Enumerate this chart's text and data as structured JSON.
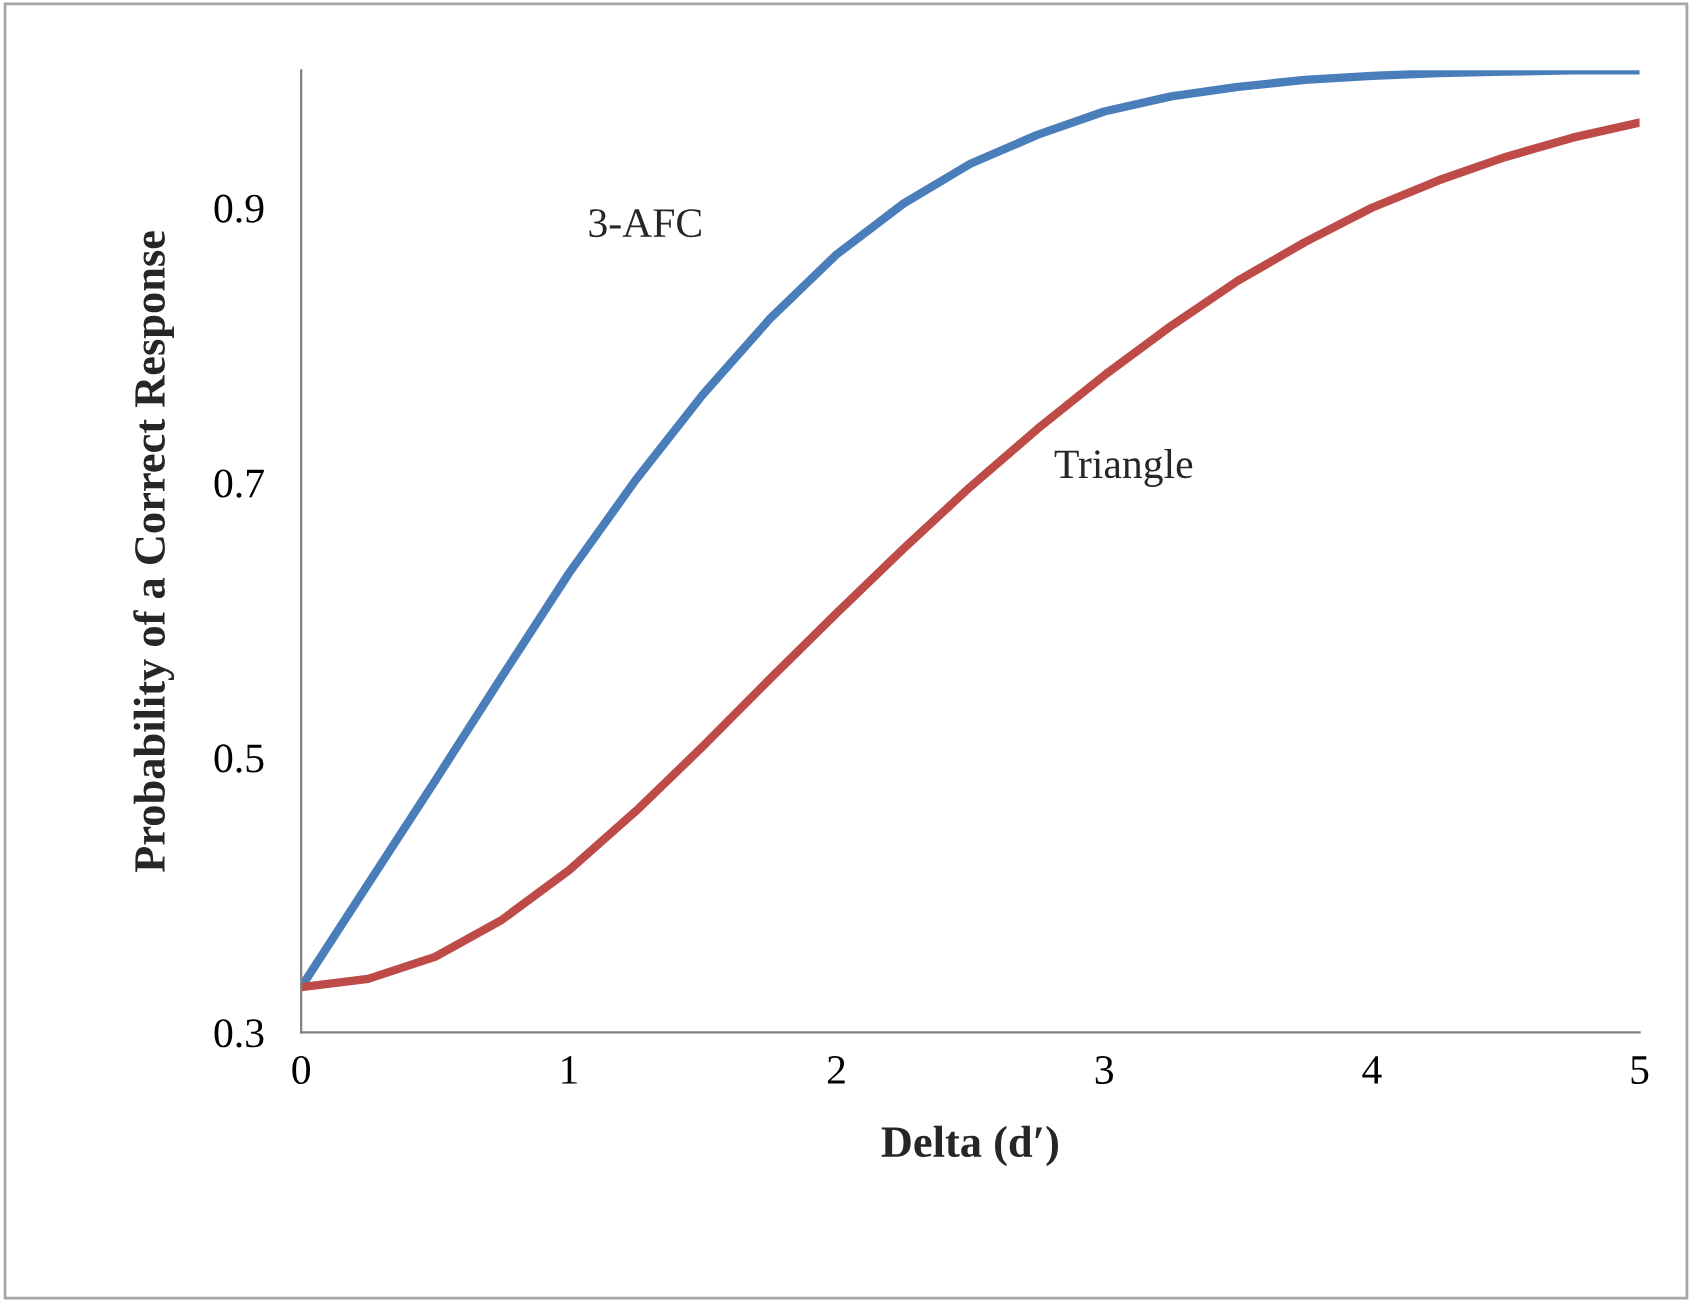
{
  "chart_data": {
    "type": "line",
    "xlabel": "Delta (d′)",
    "ylabel": "Probability of a Correct Response",
    "x": [
      0,
      0.25,
      0.5,
      0.75,
      1,
      1.25,
      1.5,
      1.75,
      2,
      2.25,
      2.5,
      2.75,
      3,
      3.25,
      3.5,
      3.75,
      4,
      4.25,
      4.5,
      4.75,
      5
    ],
    "series": [
      {
        "name": "3-AFC",
        "color": "#4a7ebb",
        "values": [
          0.333,
          0.408,
          0.483,
          0.559,
          0.634,
          0.702,
          0.764,
          0.819,
          0.866,
          0.903,
          0.932,
          0.953,
          0.97,
          0.981,
          0.988,
          0.993,
          0.996,
          0.998,
          0.999,
          1.0,
          1.0
        ]
      },
      {
        "name": "Triangle",
        "color": "#be4b48",
        "values": [
          0.333,
          0.339,
          0.355,
          0.382,
          0.418,
          0.461,
          0.508,
          0.557,
          0.605,
          0.652,
          0.697,
          0.739,
          0.778,
          0.814,
          0.847,
          0.875,
          0.9,
          0.92,
          0.937,
          0.951,
          0.962
        ]
      }
    ],
    "xlim": [
      0,
      5
    ],
    "xticks": [
      0,
      1,
      2,
      3,
      4,
      5
    ],
    "ylim": [
      0.3,
      1.0
    ],
    "yticks": [
      0.3,
      0.5,
      0.7,
      0.9
    ],
    "grid": false,
    "legend": false,
    "marker": "none",
    "line_style": "solid"
  }
}
